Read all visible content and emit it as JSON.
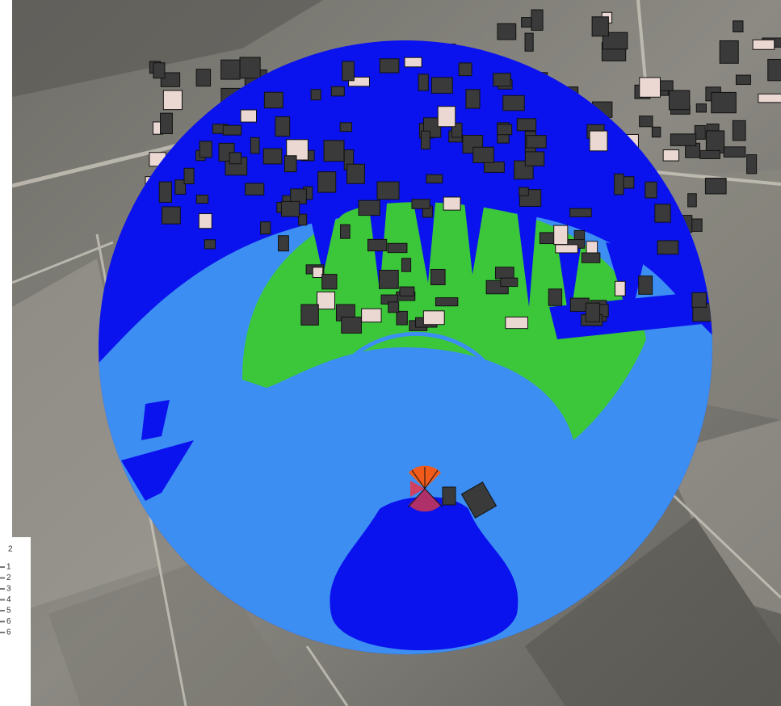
{
  "legend": {
    "items": [
      "1",
      "2",
      "3",
      "4",
      "5",
      "6",
      "6"
    ]
  }
}
